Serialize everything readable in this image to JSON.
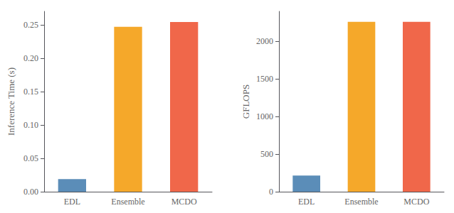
{
  "chart_data": [
    {
      "type": "bar",
      "categories": [
        "EDL",
        "Ensemble",
        "MCDO"
      ],
      "values": [
        0.019,
        0.247,
        0.254
      ],
      "colors": [
        "#5b8db8",
        "#f5a82a",
        "#f0674a"
      ],
      "ylabel": "Inference Time (s)",
      "ylim": [
        0,
        0.27
      ],
      "yticks": [
        {
          "value": 0,
          "label": "0.00"
        },
        0.05,
        {
          "value": 0.1,
          "label": "0.10"
        },
        0.15,
        {
          "value": 0.2,
          "label": "0.20"
        },
        0.25
      ],
      "grid": false
    },
    {
      "type": "bar",
      "categories": [
        "EDL",
        "Ensemble",
        "MCDO"
      ],
      "values": [
        215,
        2260,
        2260
      ],
      "colors": [
        "#5b8db8",
        "#f5a82a",
        "#f0674a"
      ],
      "ylabel": "GFLOPS",
      "ylim": [
        0,
        2400
      ],
      "yticks": [
        0,
        500,
        1000,
        1500,
        2000
      ],
      "grid": false
    }
  ]
}
